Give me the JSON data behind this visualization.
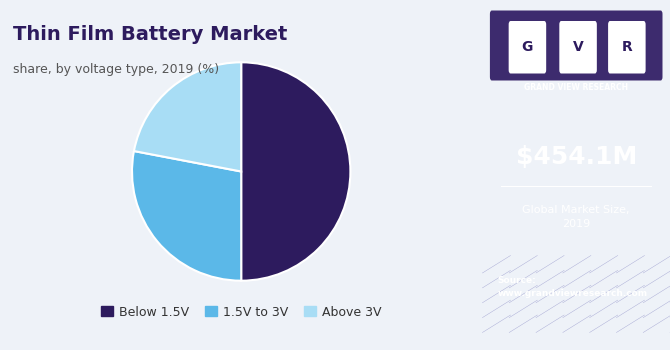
{
  "title": "Thin Film Battery Market",
  "subtitle": "share, by voltage type, 2019 (%)",
  "slices": [
    50,
    28,
    22
  ],
  "labels": [
    "Below 1.5V",
    "1.5V to 3V",
    "Above 3V"
  ],
  "colors": [
    "#2d1b5e",
    "#5bb8e8",
    "#a8ddf5"
  ],
  "startangle": 90,
  "bg_left": "#eef2f8",
  "bg_right": "#2d1b5e",
  "right_panel_text_large": "$454.1M",
  "right_panel_text_small": "Global Market Size,\n2019",
  "source_text": "Source:\nwww.grandviewresearch.com",
  "title_color": "#2d1b5e",
  "subtitle_color": "#555555",
  "legend_color": "#333333",
  "right_text_color": "#ffffff"
}
